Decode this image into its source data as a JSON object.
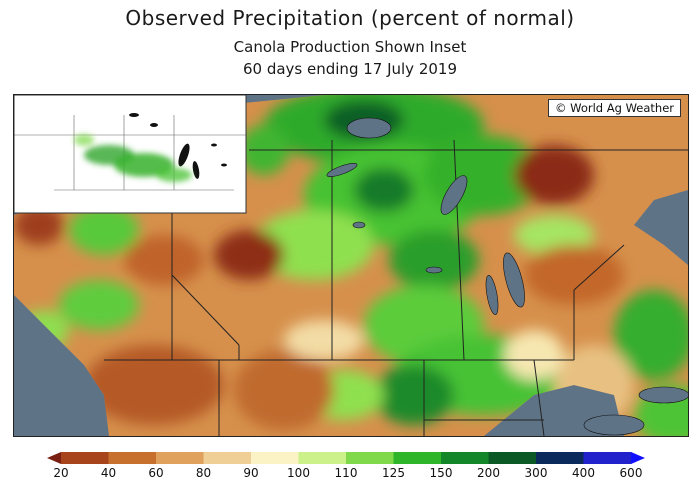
{
  "header": {
    "title": "Observed Precipitation (percent of normal)",
    "subtitle": "Canola Production Shown Inset",
    "period": "60 days ending 17 July 2019"
  },
  "map": {
    "copyright": "© World Ag Weather",
    "inset_description_visible": false
  },
  "legend": {
    "tick_labels": [
      "20",
      "40",
      "60",
      "80",
      "90",
      "100",
      "110",
      "125",
      "150",
      "200",
      "300",
      "400",
      "600"
    ],
    "colors": [
      "#7a1f12",
      "#a8441c",
      "#c7702d",
      "#dfa15c",
      "#f0cf97",
      "#fbf3c5",
      "#ccf08a",
      "#7fd94a",
      "#2fb52a",
      "#14862a",
      "#0b5a26",
      "#0a2a5c",
      "#2222cc",
      "#1010ff"
    ]
  }
}
